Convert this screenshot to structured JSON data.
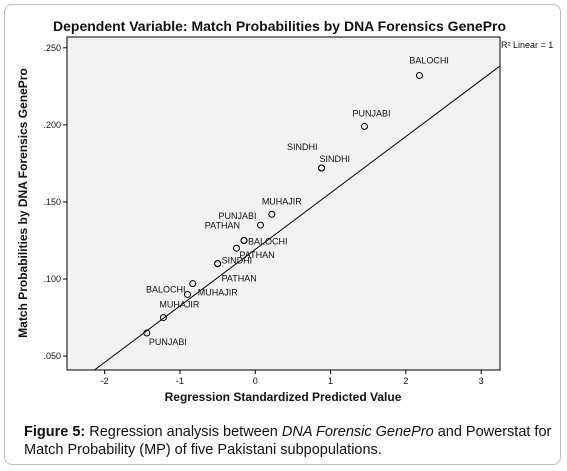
{
  "chart_data": {
    "type": "scatter",
    "title": "Dependent Variable: Match Probabilities by DNA Forensics GenePro",
    "xlabel": "Regression Standardized Predicted Value",
    "ylabel": "Match Probabilities by DNA Forensics GenePro",
    "xlim": [
      -2.5,
      3.25
    ],
    "ylim": [
      0.041,
      0.257
    ],
    "x_ticks": [
      "-2",
      "-1",
      "0",
      "1",
      "2",
      "3"
    ],
    "y_ticks": [
      ".050",
      ".100",
      ".150",
      ".200",
      ".250"
    ],
    "x_tick_values": [
      -2,
      -1,
      0,
      1,
      2,
      3
    ],
    "y_tick_values": [
      0.05,
      0.1,
      0.15,
      0.2,
      0.25
    ],
    "legend": "R² Linear = 1",
    "grid": false,
    "fit_line": {
      "slope": 0.03662,
      "intercept": 0.1192
    },
    "points": [
      {
        "x": 2.18,
        "y": 0.232,
        "label": "BALOCHI"
      },
      {
        "x": 1.45,
        "y": 0.199,
        "label": "PUNJABI"
      },
      {
        "x": 0.88,
        "y": 0.172,
        "label": "SINDHI"
      },
      {
        "x": 0.88,
        "y": 0.172,
        "label": "SINDHI"
      },
      {
        "x": 0.22,
        "y": 0.142,
        "label": "MUHAJIR"
      },
      {
        "x": 0.07,
        "y": 0.135,
        "label": "PUNJABI"
      },
      {
        "x": -0.15,
        "y": 0.125,
        "label": "PATHAN"
      },
      {
        "x": -0.15,
        "y": 0.125,
        "label": "BALOCHI"
      },
      {
        "x": -0.25,
        "y": 0.12,
        "label": "PATHAN"
      },
      {
        "x": -0.5,
        "y": 0.11,
        "label": "SINDHI"
      },
      {
        "x": -0.5,
        "y": 0.11,
        "label": "PATHAN"
      },
      {
        "x": -0.83,
        "y": 0.097,
        "label": "MUHAJIR"
      },
      {
        "x": -0.9,
        "y": 0.09,
        "label": "BALOCHI"
      },
      {
        "x": -1.22,
        "y": 0.075,
        "label": "MUHAJIR"
      },
      {
        "x": -1.44,
        "y": 0.065,
        "label": "PUNJABI"
      }
    ]
  },
  "caption": {
    "figure_label": "Figure 5:",
    "text_1": " Regression analysis between ",
    "italic": "DNA Forensic GenePro",
    "text_2": " and Powerstat for Match Probability (MP) of five Pakistani subpopulations."
  }
}
